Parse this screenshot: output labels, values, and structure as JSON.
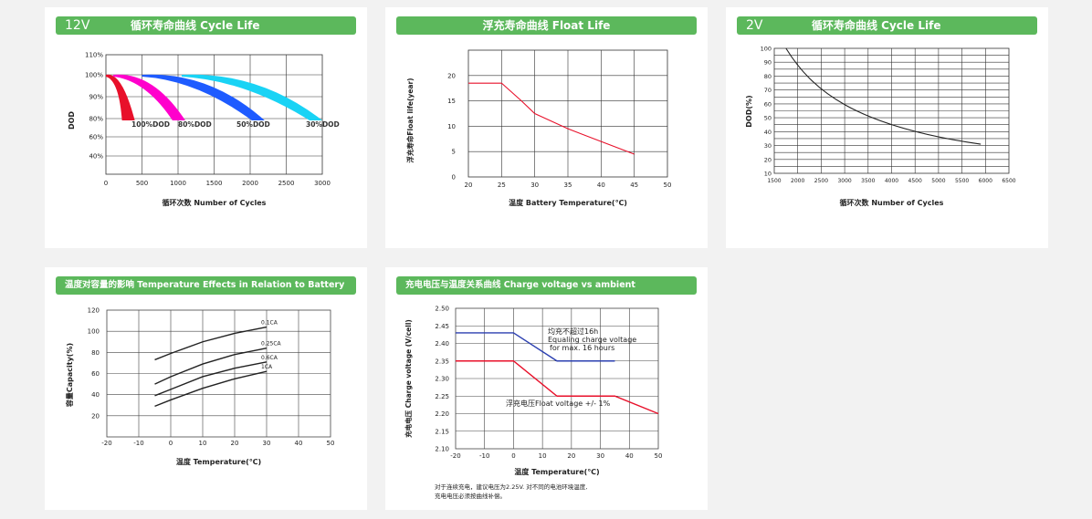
{
  "charts": [
    {
      "id": "c1",
      "banner_prefix": "12V",
      "title": "循环寿命曲线 Cycle Life",
      "type": "area",
      "xlabel": "循环次数 Number of Cycles",
      "ylabel": "DOD",
      "xticks": [
        "0",
        "500",
        "1000",
        "1500",
        "2000",
        "2500",
        "3000"
      ],
      "yticks": [
        "110%",
        "100%",
        "90%",
        "80%",
        "60%",
        "40%"
      ],
      "series": [
        {
          "name": "100%DOD",
          "color": "#e8102a",
          "label": "100%DOD"
        },
        {
          "name": "80%DOD",
          "color": "#ff00cc",
          "label": "80%DOD"
        },
        {
          "name": "50%DOD",
          "color": "#1e5bff",
          "label": "50%DOD"
        },
        {
          "name": "30%DOD",
          "color": "#19d3f5",
          "label": "30%DOD"
        }
      ]
    },
    {
      "id": "c2",
      "title": "浮充寿命曲线 Float Life",
      "type": "line",
      "xlabel": "温度 Battery Temperature(℃)",
      "ylabel": "浮充寿命Float life(year)",
      "xticks": [
        "20",
        "25",
        "30",
        "35",
        "40",
        "45",
        "50"
      ],
      "yticks": [
        "0",
        "5",
        "10",
        "15",
        "20"
      ],
      "series": [
        {
          "color": "#e8102a",
          "x": [
            20,
            25,
            28,
            30,
            35,
            40,
            45
          ],
          "y": [
            18.5,
            18.5,
            15,
            12.5,
            9.5,
            7,
            4.5
          ]
        }
      ]
    },
    {
      "id": "c3",
      "banner_prefix": "2V",
      "title": "循环寿命曲线 Cycle Life",
      "type": "line",
      "xlabel": "循环次数 Number of Cycles",
      "ylabel": "DOD(%)",
      "xticks": [
        "1500",
        "2000",
        "2500",
        "3000",
        "3500",
        "4000",
        "4500",
        "5000",
        "5500",
        "6000",
        "6500"
      ],
      "yticks": [
        "100",
        "90",
        "80",
        "70",
        "60",
        "50",
        "40",
        "30",
        "20",
        "10"
      ],
      "series": [
        {
          "color": "#222222",
          "x": [
            1750,
            2000,
            2500,
            3000,
            3500,
            4000,
            4500,
            5000,
            5500,
            5900
          ],
          "y": [
            100,
            90,
            71,
            58,
            49,
            42,
            37,
            34,
            32,
            31
          ]
        }
      ]
    },
    {
      "id": "c4",
      "title": "温度对容量的影响 Temperature Effects in Relation to Battery Capacity",
      "type": "line",
      "xlabel": "温度 Temperature(℃)",
      "ylabel": "容量Capacity(%)",
      "xticks": [
        "-20",
        "-10",
        "0",
        "10",
        "20",
        "30",
        "40",
        "50"
      ],
      "yticks": [
        "120",
        "100",
        "80",
        "60",
        "40",
        "20"
      ],
      "series": [
        {
          "name": "0.1CA",
          "color": "#222222",
          "x": [
            -5,
            0,
            10,
            20,
            30
          ],
          "y": [
            73,
            79,
            90,
            98,
            104
          ]
        },
        {
          "name": "0.25CA",
          "color": "#222222",
          "x": [
            -5,
            0,
            10,
            20,
            30
          ],
          "y": [
            50,
            57,
            69,
            78,
            84
          ]
        },
        {
          "name": "0.6CA",
          "color": "#222222",
          "x": [
            -5,
            0,
            10,
            20,
            30
          ],
          "y": [
            39,
            45,
            57,
            65,
            71
          ]
        },
        {
          "name": "1CA",
          "color": "#222222",
          "x": [
            -5,
            0,
            10,
            20,
            30
          ],
          "y": [
            29,
            35,
            46,
            55,
            62
          ]
        }
      ]
    },
    {
      "id": "c5",
      "title": "充电电压与温度关系曲线 Charge voltage vs ambient temperature curve",
      "type": "line",
      "xlabel": "温度 Temperature(℃)",
      "ylabel": "充电电压 Charge voltage (V/cell)",
      "xticks": [
        "-20",
        "-10",
        "0",
        "10",
        "20",
        "30",
        "40",
        "50"
      ],
      "yticks": [
        "2.50",
        "2.45",
        "2.40",
        "2.35",
        "2.30",
        "2.25",
        "2.20",
        "2.15",
        "2.10"
      ],
      "series": [
        {
          "name": "均充",
          "color": "#2b3fb0",
          "x": [
            -20,
            0,
            15,
            35
          ],
          "y": [
            2.43,
            2.43,
            2.35,
            2.35
          ]
        },
        {
          "name": "浮充",
          "color": "#e8102a",
          "x": [
            -20,
            0,
            15,
            35,
            50
          ],
          "y": [
            2.35,
            2.35,
            2.25,
            2.25,
            2.2
          ]
        }
      ],
      "annotation_eq_cn": "均充不超过16h",
      "annotation_eq_en1": "Equaling charge voltage",
      "annotation_eq_en2": "for max. 16 hours",
      "annotation_float": "浮充电压Float voltage +/- 1%",
      "note_line1": "对于连续充电，建议电压为2.25V. 对不同的电池环境温度,",
      "note_line2": "充电电压必须按曲线补偿。"
    }
  ]
}
